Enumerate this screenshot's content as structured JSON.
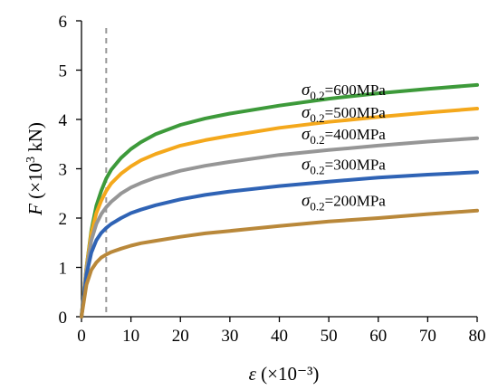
{
  "chart_data": {
    "type": "line",
    "xlabel": {
      "symbol": "ε",
      "unit": " (×10⁻³)"
    },
    "ylabel": {
      "symbol": "F",
      "unit_pre": " (×10",
      "unit_sup": "3",
      "unit_post": " kN)"
    },
    "xlim": [
      0,
      80
    ],
    "ylim": [
      0,
      6
    ],
    "xticks": [
      0,
      10,
      20,
      30,
      40,
      50,
      60,
      70,
      80
    ],
    "yticks": [
      0,
      1,
      2,
      3,
      4,
      5,
      6
    ],
    "grid": false,
    "reference_line": {
      "x": 5,
      "style": "dashed",
      "color": "#999999"
    },
    "series": [
      {
        "name": "σ0.2=600MPa",
        "name_symbol": "σ",
        "name_sub": "0.2",
        "name_rest": "=600MPa",
        "color": "#3d9a3a",
        "x": [
          0,
          1,
          2,
          3,
          4,
          5,
          6,
          8,
          10,
          12,
          15,
          20,
          25,
          30,
          40,
          50,
          60,
          70,
          80
        ],
        "y": [
          0,
          1.0,
          1.75,
          2.25,
          2.55,
          2.8,
          2.98,
          3.22,
          3.4,
          3.54,
          3.7,
          3.89,
          4.02,
          4.12,
          4.28,
          4.42,
          4.53,
          4.62,
          4.7
        ]
      },
      {
        "name": "σ0.2=500MPa",
        "name_symbol": "σ",
        "name_sub": "0.2",
        "name_rest": "=500MPa",
        "color": "#f4a81c",
        "x": [
          0,
          1,
          2,
          3,
          4,
          5,
          6,
          8,
          10,
          12,
          15,
          20,
          25,
          30,
          40,
          50,
          60,
          70,
          80
        ],
        "y": [
          0,
          1.0,
          1.7,
          2.1,
          2.35,
          2.55,
          2.7,
          2.9,
          3.05,
          3.17,
          3.3,
          3.47,
          3.58,
          3.67,
          3.83,
          3.95,
          4.05,
          4.14,
          4.22
        ]
      },
      {
        "name": "σ0.2=400MPa",
        "name_symbol": "σ",
        "name_sub": "0.2",
        "name_rest": "=400MPa",
        "color": "#969696",
        "x": [
          0,
          1,
          2,
          3,
          4,
          5,
          6,
          8,
          10,
          12,
          15,
          20,
          25,
          30,
          40,
          50,
          60,
          70,
          80
        ],
        "y": [
          0,
          0.95,
          1.55,
          1.88,
          2.08,
          2.22,
          2.33,
          2.5,
          2.62,
          2.71,
          2.82,
          2.96,
          3.06,
          3.14,
          3.28,
          3.38,
          3.47,
          3.55,
          3.62
        ]
      },
      {
        "name": "σ0.2=300MPa",
        "name_symbol": "σ",
        "name_sub": "0.2",
        "name_rest": "=300MPa",
        "color": "#2f63b5",
        "x": [
          0,
          1,
          2,
          3,
          4,
          5,
          6,
          8,
          10,
          12,
          15,
          20,
          25,
          30,
          40,
          50,
          60,
          70,
          80
        ],
        "y": [
          0,
          0.85,
          1.3,
          1.55,
          1.7,
          1.8,
          1.88,
          2.0,
          2.1,
          2.17,
          2.26,
          2.38,
          2.47,
          2.54,
          2.65,
          2.74,
          2.82,
          2.88,
          2.93
        ]
      },
      {
        "name": "σ0.2=200MPa",
        "name_symbol": "σ",
        "name_sub": "0.2",
        "name_rest": "=200MPa",
        "color": "#b9883a",
        "x": [
          0,
          1,
          2,
          3,
          4,
          5,
          6,
          8,
          10,
          12,
          15,
          20,
          25,
          30,
          40,
          50,
          60,
          70,
          80
        ],
        "y": [
          0,
          0.65,
          0.95,
          1.1,
          1.2,
          1.26,
          1.31,
          1.38,
          1.44,
          1.49,
          1.54,
          1.62,
          1.69,
          1.74,
          1.84,
          1.93,
          2.0,
          2.08,
          2.15
        ]
      }
    ],
    "label_positions": [
      4.5,
      4.04,
      3.6,
      2.98,
      2.25
    ]
  }
}
